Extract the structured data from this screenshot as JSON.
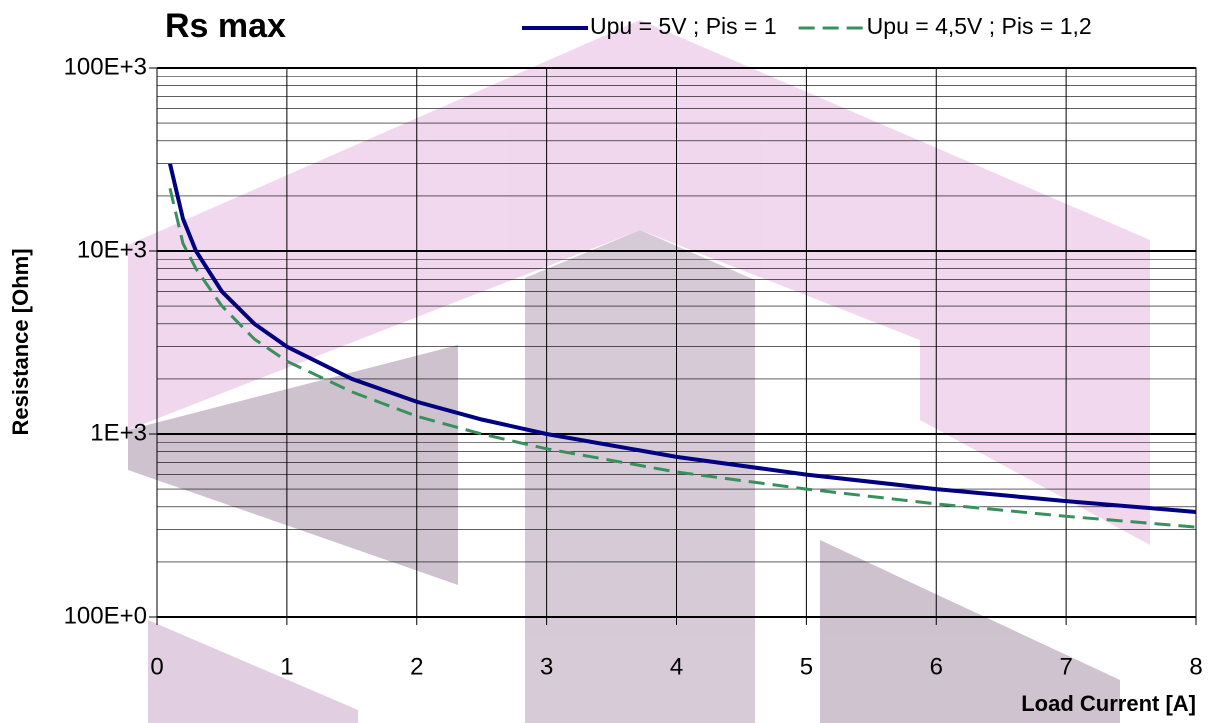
{
  "chart_data": {
    "type": "line",
    "title": "Rs max",
    "x_label": "Load Current [A]",
    "y_label": "Resistance [Ohm]",
    "x": [
      0.1,
      0.2,
      0.3,
      0.5,
      0.75,
      1,
      1.5,
      2,
      2.5,
      3,
      4,
      5,
      6,
      7,
      8
    ],
    "series": [
      {
        "name": "Upu = 5V ; Pis = 1",
        "color": "#000080",
        "dash": "solid",
        "values": [
          30000,
          15000,
          10000,
          6000,
          4000,
          3000,
          2000,
          1500,
          1200,
          1000,
          750,
          600,
          500,
          430,
          375
        ]
      },
      {
        "name": "Upu = 4,5V ; Pis = 1,2",
        "color": "#3a8f5f",
        "dash": "dashed",
        "values": [
          22000,
          11000,
          8000,
          5000,
          3300,
          2500,
          1700,
          1250,
          1000,
          830,
          620,
          500,
          415,
          355,
          310
        ]
      }
    ],
    "xlim": [
      0,
      8
    ],
    "xticks": [
      0,
      1,
      2,
      3,
      4,
      5,
      6,
      7,
      8
    ],
    "ylim": [
      100,
      100000
    ],
    "y_log": true,
    "yticks": [
      {
        "value": 100,
        "label": "100E+0"
      },
      {
        "value": 1000,
        "label": "1E+3"
      },
      {
        "value": 10000,
        "label": "10E+3"
      },
      {
        "value": 100000,
        "label": "100E+3"
      }
    ],
    "grid": true,
    "legend": "top-right"
  }
}
